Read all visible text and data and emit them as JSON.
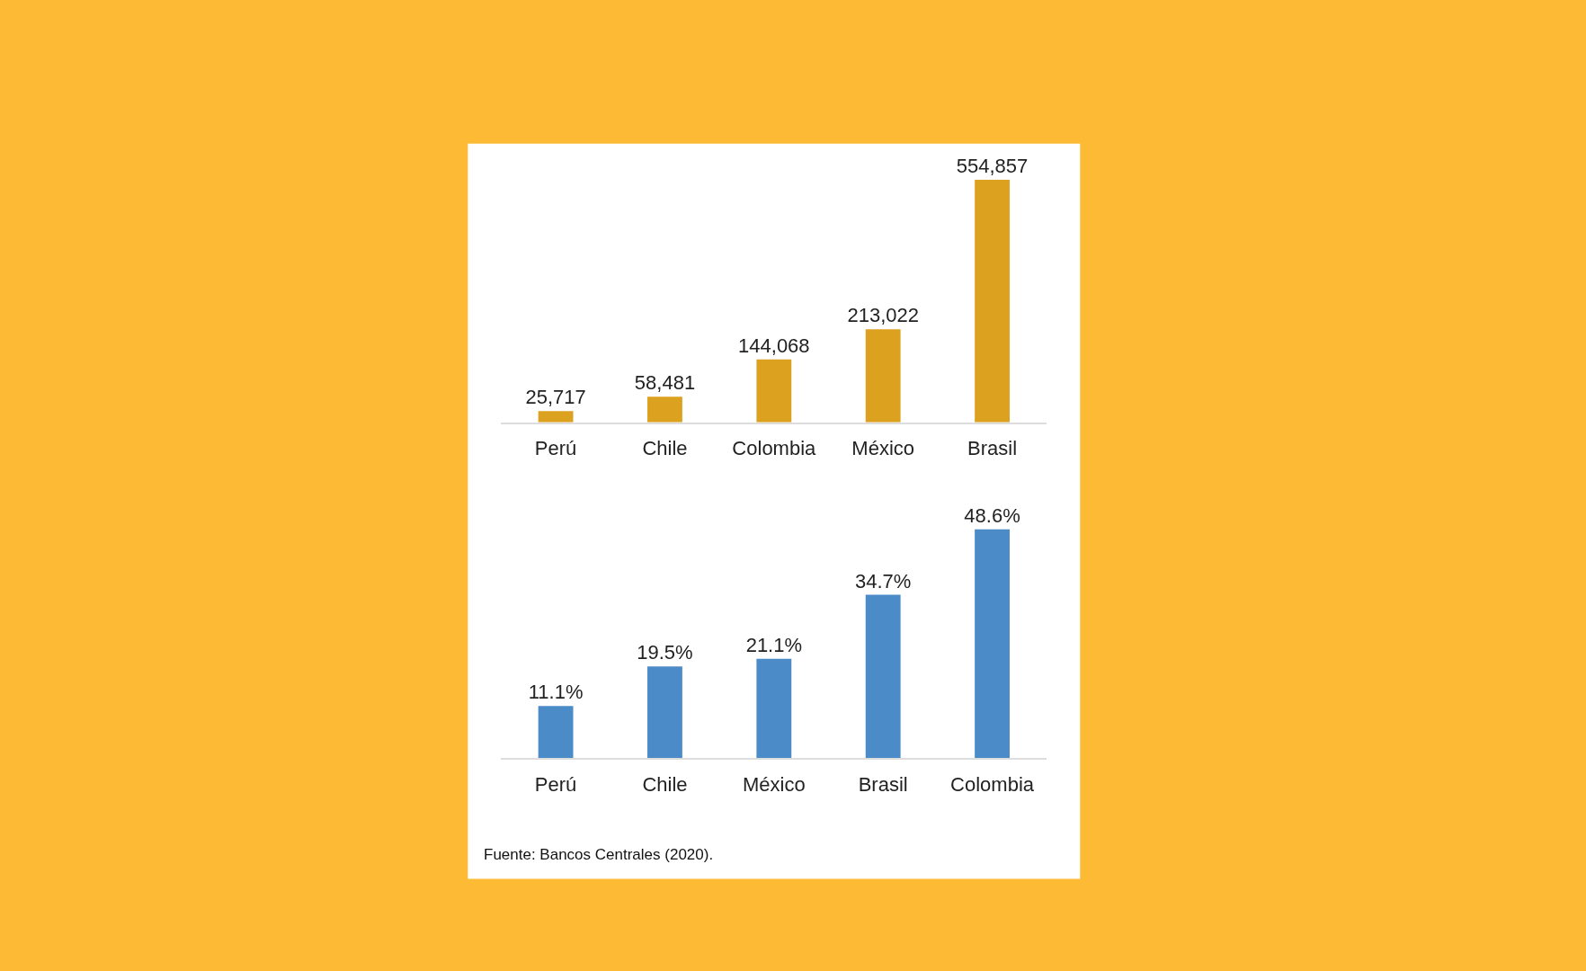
{
  "chart_data": [
    {
      "type": "bar",
      "categories": [
        "Perú",
        "Chile",
        "Colombia",
        "México",
        "Brasil"
      ],
      "values": [
        25717,
        58481,
        144068,
        213022,
        554857
      ],
      "value_labels": [
        "25,717",
        "58,481",
        "144,068",
        "213,022",
        "554,857"
      ],
      "color": "#dca21f"
    },
    {
      "type": "bar",
      "categories": [
        "Perú",
        "Chile",
        "México",
        "Brasil",
        "Colombia"
      ],
      "values": [
        11.1,
        19.5,
        21.1,
        34.7,
        48.6
      ],
      "value_labels": [
        "11.1%",
        "19.5%",
        "21.1%",
        "34.7%",
        "48.6%"
      ],
      "color": "#4a8bc8",
      "annotations": [
        "Fuente: Bancos Centrales (2020)."
      ]
    }
  ]
}
